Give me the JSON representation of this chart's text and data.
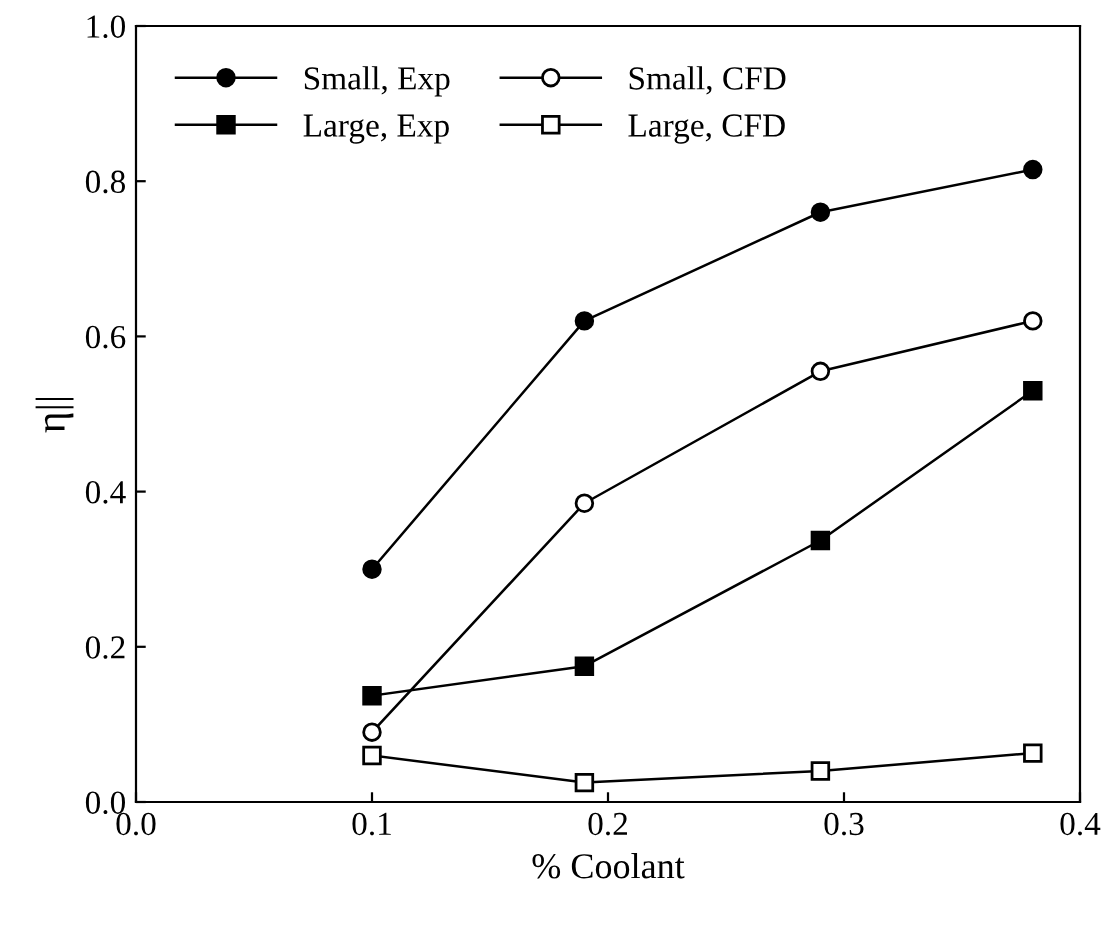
{
  "chart_data": {
    "type": "line",
    "xlabel": "% Coolant",
    "ylabel": "η||",
    "x": [
      0.1,
      0.19,
      0.29,
      0.38
    ],
    "series": [
      {
        "name": "Small, Exp",
        "color": "#000000",
        "marker": "circle",
        "values": [
          0.3,
          0.62,
          0.76,
          0.815
        ]
      },
      {
        "name": "Large, Exp",
        "color": "#000000",
        "marker": "square",
        "values": [
          0.137,
          0.175,
          0.337,
          0.53
        ]
      },
      {
        "name": "Small, CFD",
        "color": "#000000",
        "marker": "circle-open",
        "values": [
          0.09,
          0.385,
          0.555,
          0.62
        ]
      },
      {
        "name": "Large, CFD",
        "color": "#000000",
        "marker": "square-open",
        "values": [
          0.06,
          0.025,
          0.04,
          0.063
        ]
      }
    ],
    "xlim": [
      0.0,
      0.4
    ],
    "ylim": [
      0.0,
      1.0
    ],
    "xticks": [
      {
        "value": 0.0,
        "label": "0.0"
      },
      0.1,
      0.2,
      0.3,
      0.4
    ],
    "yticks": [
      {
        "value": 0.0,
        "label": "0.0"
      },
      0.2,
      0.4,
      0.6,
      0.8,
      {
        "value": 1.0,
        "label": "1.0"
      }
    ],
    "grid": false,
    "legend": "top left",
    "line_style": "solid"
  }
}
